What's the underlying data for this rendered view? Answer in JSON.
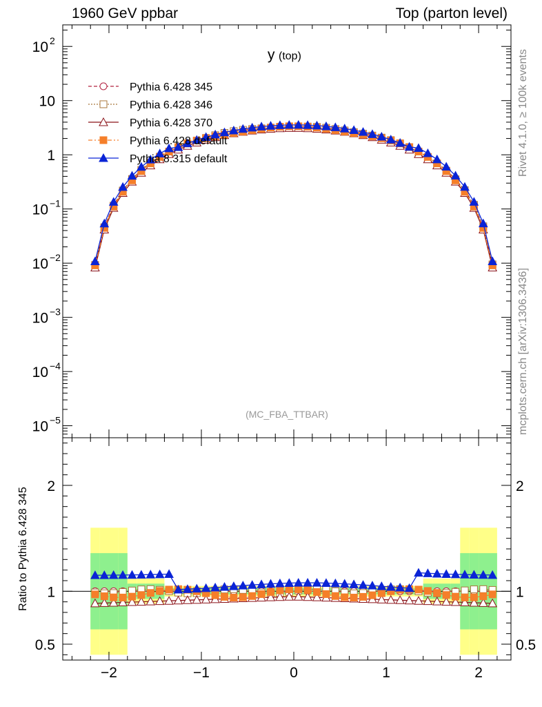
{
  "header": {
    "left": "1960 GeV ppbar",
    "right": "Top (parton level)"
  },
  "side_labels": {
    "rivet": "Rivet 4.1.0, ≥ 100k events",
    "mcplots": "mcplots.cern.ch [arXiv:1306.3436]"
  },
  "colors": {
    "p345": "#b2203f",
    "p346": "#a8763a",
    "p370": "#8a1218",
    "p6def": "#f57f2a",
    "p8def": "#0a24d6",
    "band_green": "#8ef08e",
    "band_yellow": "#ffff88"
  },
  "chart_data": {
    "type": "line",
    "title": "y",
    "title_suffix": "(top)",
    "watermark": "(MC_FBA_TTBAR)",
    "xlabel": "",
    "ylabel": "",
    "xlim": [
      -2.5,
      2.35
    ],
    "ylim": [
      6e-06,
      250
    ],
    "yscale": "log",
    "x_ticks": [
      -2,
      -1,
      0,
      1,
      2
    ],
    "x_tick_labels": [
      "−2",
      "−1",
      "0",
      "1",
      "2"
    ],
    "y_tick_labels": [
      {
        "value": 1e-05,
        "base": "10",
        "exp": "−5"
      },
      {
        "value": 0.0001,
        "base": "10",
        "exp": "−4"
      },
      {
        "value": 0.001,
        "base": "10",
        "exp": "−3"
      },
      {
        "value": 0.01,
        "base": "10",
        "exp": "−2"
      },
      {
        "value": 0.1,
        "base": "10",
        "exp": "−1"
      },
      {
        "value": 1,
        "base": "1",
        "exp": ""
      },
      {
        "value": 10,
        "base": "10",
        "exp": ""
      },
      {
        "value": 100,
        "base": "10",
        "exp": "2"
      }
    ],
    "legend": [
      {
        "key": "p345",
        "label": "Pythia 6.428 345",
        "marker": "circle-open",
        "dash": "5,3"
      },
      {
        "key": "p346",
        "label": "Pythia 6.428 346",
        "marker": "square-open",
        "dash": "2,2"
      },
      {
        "key": "p370",
        "label": "Pythia 6.428 370",
        "marker": "triangle-open",
        "dash": ""
      },
      {
        "key": "p6def",
        "label": "Pythia 6.428 default",
        "marker": "square-filled",
        "dash": "6,3,2,3"
      },
      {
        "key": "p8def",
        "label": "Pythia 8.315 default",
        "marker": "triangle-filled",
        "dash": ""
      }
    ],
    "ratio": {
      "ylabel": "Ratio to Pythia 6.428 345",
      "ylim": [
        0.35,
        2.45
      ],
      "y_ticks": [
        0.5,
        1,
        2
      ],
      "y_tick_labels": [
        "0.5",
        "1",
        "2"
      ],
      "reference": 1
    }
  }
}
